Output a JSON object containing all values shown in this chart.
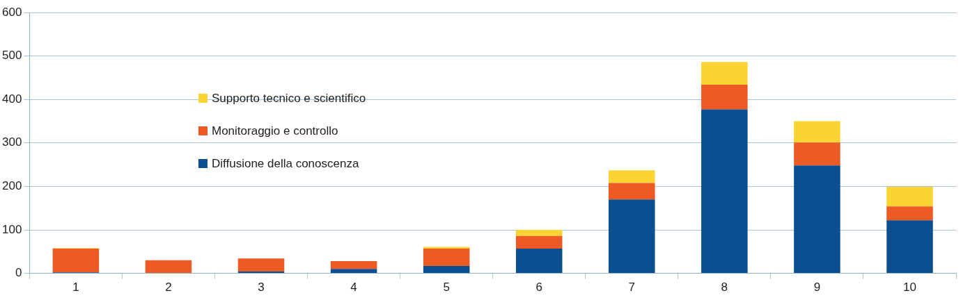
{
  "chart_data": {
    "type": "bar",
    "stacked": true,
    "categories": [
      "1",
      "2",
      "3",
      "4",
      "5",
      "6",
      "7",
      "8",
      "9",
      "10"
    ],
    "series": [
      {
        "name": "Diffusione della conoscenza",
        "color": "#0b4f91",
        "values": [
          2,
          1,
          4,
          10,
          17,
          57,
          170,
          377,
          248,
          122
        ]
      },
      {
        "name": "Monitoraggio e controllo",
        "color": "#ee5a24",
        "values": [
          55,
          29,
          30,
          18,
          40,
          29,
          38,
          57,
          53,
          32
        ]
      },
      {
        "name": "Supporto tecnico e scientifico",
        "color": "#f9d433",
        "values": [
          1,
          0,
          0,
          0,
          4,
          14,
          29,
          52,
          49,
          45
        ]
      }
    ],
    "ylim": [
      0,
      600
    ],
    "yticks": [
      0,
      100,
      200,
      300,
      400,
      500,
      600
    ],
    "grid": "y",
    "legend": "top left"
  }
}
